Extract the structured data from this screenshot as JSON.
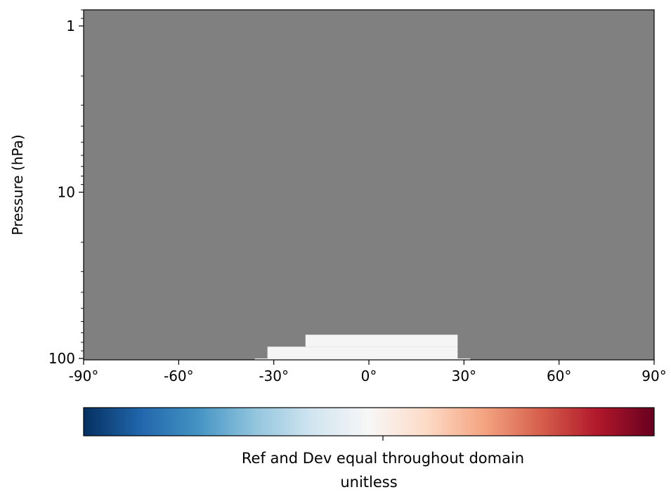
{
  "chart_data": {
    "type": "heatmap",
    "title": "",
    "xlabel": "",
    "ylabel": "Pressure (hPa)",
    "x_ticks": [
      {
        "value": -90,
        "label": "-90°"
      },
      {
        "value": -60,
        "label": "-60°"
      },
      {
        "value": -30,
        "label": "-30°"
      },
      {
        "value": 0,
        "label": "0°"
      },
      {
        "value": 30,
        "label": "30°"
      },
      {
        "value": 60,
        "label": "60°"
      },
      {
        "value": 90,
        "label": "90°"
      }
    ],
    "xlim": [
      -90,
      90
    ],
    "y_scale": "log",
    "y_inverted": true,
    "y_ticks": [
      {
        "value": 1,
        "label": "1"
      },
      {
        "value": 10,
        "label": "10"
      },
      {
        "value": 100,
        "label": "100"
      }
    ],
    "ylim": [
      102,
      0.8
    ],
    "background_value": "no data",
    "background_color": "#808080",
    "data_regions": [
      {
        "lat_min": -36,
        "lat_max": 32,
        "p_top": 100,
        "p_bottom": 102,
        "color": "#f5f5f5"
      },
      {
        "lat_min": -32,
        "lat_max": 28,
        "p_top": 85,
        "p_bottom": 100,
        "color": "#f5f5f5"
      },
      {
        "lat_min": -20,
        "lat_max": 28,
        "p_top": 72,
        "p_bottom": 85,
        "color": "#f5f5f5"
      }
    ],
    "colorbar": {
      "colormap": "RdBu_r",
      "colors": [
        "#053061",
        "#2166ac",
        "#4393c3",
        "#92c5de",
        "#d1e5f0",
        "#f7f7f7",
        "#fddbc7",
        "#f4a582",
        "#d6604d",
        "#b2182b",
        "#67001f"
      ],
      "tick_label": "",
      "label": "Ref and Dev equal throughout domain",
      "units": "unitless"
    }
  }
}
